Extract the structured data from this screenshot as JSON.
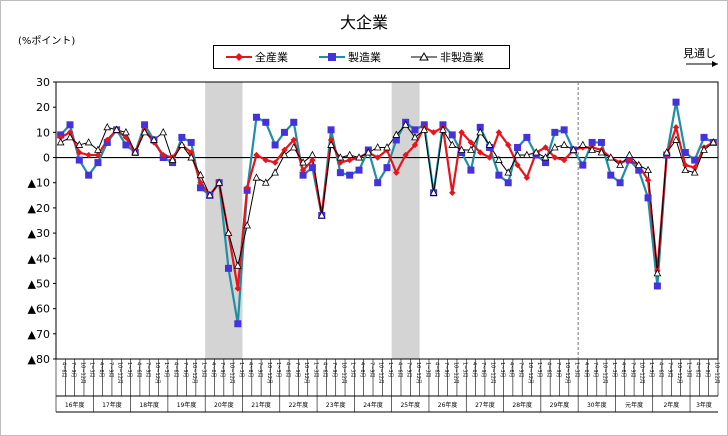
{
  "chart_data": {
    "type": "line",
    "title": "大企業",
    "ylabel": "(%ポイント)",
    "outlook_label": "見通し",
    "ylim": [
      -80,
      30
    ],
    "yticks": [
      {
        "value": 30,
        "label": "30"
      },
      {
        "value": 20,
        "label": "20"
      },
      {
        "value": 10,
        "label": "10"
      },
      {
        "value": 0,
        "label": "0"
      },
      {
        "value": -10,
        "label": "▲10"
      },
      {
        "value": -20,
        "label": "▲20"
      },
      {
        "value": -30,
        "label": "▲30"
      },
      {
        "value": -40,
        "label": "▲40"
      },
      {
        "value": -50,
        "label": "▲50"
      },
      {
        "value": -60,
        "label": "▲60"
      },
      {
        "value": -70,
        "label": "▲70"
      },
      {
        "value": -80,
        "label": "▲80"
      }
    ],
    "x_quarter_labels": [
      "4~6月",
      "7~9月",
      "10~12月",
      "1~3月"
    ],
    "year_labels": [
      "16年度",
      "17年度",
      "18年度",
      "19年度",
      "20年度",
      "21年度",
      "22年度",
      "23年度",
      "24年度",
      "25年度",
      "26年度",
      "27年度",
      "28年度",
      "29年度",
      "30年度",
      "元年度",
      "2年度",
      "3年度"
    ],
    "n_points": 71,
    "recession_shading": [
      {
        "from": 16,
        "to": 20
      },
      {
        "from": 36,
        "to": 39
      }
    ],
    "forecast_start_index": 56,
    "colors": {
      "all": "#e8141c",
      "manufacturing": "#1f8fa6",
      "manufacturing_marker": "#4433dd",
      "non_manufacturing": "#000000"
    },
    "series": [
      {
        "name": "全産業",
        "values": [
          8,
          10,
          2,
          1,
          1,
          7,
          11,
          8,
          2,
          11,
          6,
          1,
          0,
          5,
          2,
          -10,
          -15,
          -10,
          -30,
          -52,
          -12,
          1,
          -1,
          -2,
          3,
          7,
          -5,
          -1,
          -23,
          7,
          -2,
          -1,
          0,
          2,
          0,
          3,
          -6,
          1,
          5,
          12,
          10,
          12,
          -14,
          10,
          6,
          2,
          0,
          10,
          5,
          -3,
          -8,
          2,
          4,
          0,
          -1,
          3,
          4,
          4,
          3,
          0,
          -2,
          -1,
          -3,
          -9,
          -45,
          1,
          12,
          -3,
          -4,
          4,
          6
        ]
      },
      {
        "name": "製造業",
        "values": [
          9,
          13,
          -1,
          -7,
          -2,
          6,
          11,
          5,
          2,
          13,
          7,
          0,
          -2,
          8,
          6,
          -12,
          -15,
          -10,
          -44,
          -66,
          -13,
          16,
          14,
          5,
          10,
          14,
          -7,
          -4,
          -23,
          11,
          -6,
          -7,
          -5,
          3,
          -10,
          -4,
          7,
          14,
          11,
          13,
          -14,
          13,
          9,
          2,
          -5,
          12,
          4,
          -7,
          -10,
          4,
          8,
          1,
          -2,
          10,
          11,
          3,
          -3,
          6,
          6,
          -7,
          -10,
          -1,
          -5,
          -16,
          -51,
          1,
          22,
          2,
          -1,
          8,
          6
        ]
      },
      {
        "name": "非製造業",
        "values": [
          6,
          8,
          5,
          6,
          3,
          12,
          11,
          10,
          2,
          10,
          7,
          10,
          -1,
          5,
          0,
          -7,
          -15,
          -10,
          -30,
          -43,
          -27,
          -8,
          -10,
          -6,
          1,
          4,
          -2,
          1,
          -23,
          5,
          0,
          1,
          0,
          2,
          4,
          4,
          9,
          13,
          8,
          11,
          -14,
          11,
          5,
          3,
          3,
          10,
          5,
          -1,
          -6,
          1,
          1,
          2,
          0,
          4,
          5,
          3,
          5,
          3,
          2,
          0,
          -3,
          1,
          -3,
          -5,
          -46,
          2,
          7,
          -5,
          -6,
          3,
          6
        ]
      }
    ]
  }
}
